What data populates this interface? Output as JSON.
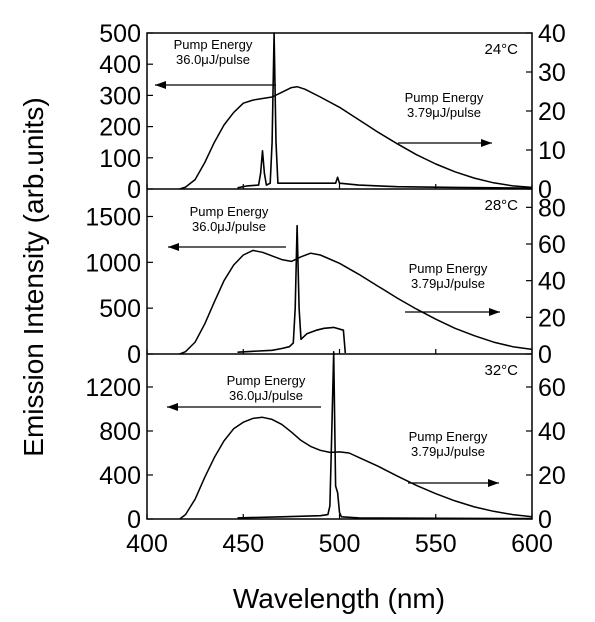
{
  "chart_data": {
    "type": "line",
    "xlabel": "Wavelength (nm)",
    "ylabel": "Emission Intensity (arb.units)",
    "xlim": [
      400,
      600
    ],
    "x_ticks": [
      400,
      450,
      500,
      550,
      600
    ],
    "panels": [
      {
        "temperature": "24°C",
        "ylim_left": [
          0,
          500
        ],
        "left_ticks": [
          0,
          100,
          200,
          300,
          400,
          500
        ],
        "ylim_right": [
          0,
          40
        ],
        "right_ticks": [
          0,
          10,
          20,
          30,
          40
        ],
        "annotations": [
          {
            "line1": "Pump Energy",
            "line2": "36.0μJ/pulse",
            "arrow": "left"
          },
          {
            "line1": "Pump Energy",
            "line2": "3.79μJ/pulse",
            "arrow": "right"
          }
        ],
        "series": [
          {
            "axis": "left",
            "points": [
              [
                417,
                0
              ],
              [
                420,
                6
              ],
              [
                425,
                30
              ],
              [
                430,
                85
              ],
              [
                435,
                150
              ],
              [
                440,
                205
              ],
              [
                445,
                245
              ],
              [
                450,
                275
              ],
              [
                455,
                285
              ],
              [
                460,
                290
              ],
              [
                465,
                295
              ],
              [
                470,
                310
              ],
              [
                475,
                325
              ],
              [
                478,
                328
              ],
              [
                482,
                320
              ],
              [
                490,
                295
              ],
              [
                500,
                262
              ],
              [
                510,
                222
              ],
              [
                520,
                182
              ],
              [
                530,
                145
              ],
              [
                540,
                110
              ],
              [
                550,
                80
              ],
              [
                560,
                55
              ],
              [
                570,
                35
              ],
              [
                580,
                20
              ],
              [
                590,
                10
              ],
              [
                600,
                5
              ]
            ]
          },
          {
            "axis": "right",
            "points": [
              [
                447,
                0.3
              ],
              [
                452,
                0.8
              ],
              [
                458,
                1
              ],
              [
                459,
                4
              ],
              [
                460,
                9.8
              ],
              [
                461,
                4
              ],
              [
                462,
                1
              ],
              [
                464,
                1.5
              ],
              [
                465,
                12
              ],
              [
                466,
                40
              ],
              [
                467,
                12
              ],
              [
                468,
                1.5
              ],
              [
                480,
                1.5
              ],
              [
                490,
                1.5
              ],
              [
                498,
                1.5
              ],
              [
                499,
                3
              ],
              [
                500,
                1.5
              ],
              [
                510,
                1
              ],
              [
                530,
                0.6
              ],
              [
                560,
                0.4
              ],
              [
                600,
                0.2
              ]
            ]
          }
        ]
      },
      {
        "temperature": "28°C",
        "ylim_left": [
          0,
          1800
        ],
        "left_ticks": [
          0,
          500,
          1000,
          1500
        ],
        "ylim_right": [
          0,
          90
        ],
        "right_ticks": [
          0,
          20,
          40,
          60,
          80
        ],
        "annotations": [
          {
            "line1": "Pump Energy",
            "line2": "36.0μJ/pulse",
            "arrow": "left"
          },
          {
            "line1": "Pump Energy",
            "line2": "3.79μJ/pulse",
            "arrow": "right"
          }
        ],
        "series": [
          {
            "axis": "left",
            "points": [
              [
                417,
                0
              ],
              [
                420,
                25
              ],
              [
                425,
                130
              ],
              [
                430,
                330
              ],
              [
                435,
                570
              ],
              [
                440,
                800
              ],
              [
                445,
                970
              ],
              [
                450,
                1080
              ],
              [
                455,
                1130
              ],
              [
                460,
                1110
              ],
              [
                465,
                1070
              ],
              [
                470,
                1030
              ],
              [
                475,
                1010
              ],
              [
                480,
                1060
              ],
              [
                485,
                1100
              ],
              [
                490,
                1080
              ],
              [
                500,
                990
              ],
              [
                510,
                870
              ],
              [
                520,
                740
              ],
              [
                530,
                610
              ],
              [
                540,
                490
              ],
              [
                550,
                380
              ],
              [
                560,
                280
              ],
              [
                570,
                200
              ],
              [
                580,
                130
              ],
              [
                590,
                80
              ],
              [
                600,
                50
              ]
            ]
          },
          {
            "axis": "right",
            "points": [
              [
                447,
                1
              ],
              [
                455,
                1.5
              ],
              [
                465,
                2
              ],
              [
                470,
                3
              ],
              [
                474,
                4
              ],
              [
                476,
                6
              ],
              [
                477,
                25
              ],
              [
                478,
                70
              ],
              [
                479,
                25
              ],
              [
                480,
                8
              ],
              [
                483,
                11
              ],
              [
                488,
                13
              ],
              [
                492,
                14
              ],
              [
                497,
                14.5
              ],
              [
                502,
                13
              ],
              [
                503,
                0.5
              ]
            ]
          }
        ]
      },
      {
        "temperature": "32°C",
        "ylim_left": [
          0,
          1500
        ],
        "left_ticks": [
          0,
          400,
          800,
          1200
        ],
        "ylim_right": [
          0,
          75
        ],
        "right_ticks": [
          0,
          20,
          40,
          60
        ],
        "annotations": [
          {
            "line1": "Pump Energy",
            "line2": "36.0μJ/pulse",
            "arrow": "left"
          },
          {
            "line1": "Pump Energy",
            "line2": "3.79μJ/pulse",
            "arrow": "right"
          }
        ],
        "series": [
          {
            "axis": "left",
            "points": [
              [
                417,
                0
              ],
              [
                420,
                40
              ],
              [
                425,
                180
              ],
              [
                430,
                380
              ],
              [
                435,
                560
              ],
              [
                440,
                710
              ],
              [
                445,
                820
              ],
              [
                450,
                880
              ],
              [
                455,
                915
              ],
              [
                460,
                925
              ],
              [
                465,
                905
              ],
              [
                470,
                860
              ],
              [
                475,
                790
              ],
              [
                480,
                715
              ],
              [
                485,
                660
              ],
              [
                490,
                625
              ],
              [
                495,
                605
              ],
              [
                500,
                610
              ],
              [
                505,
                600
              ],
              [
                510,
                560
              ],
              [
                520,
                480
              ],
              [
                530,
                390
              ],
              [
                540,
                305
              ],
              [
                550,
                230
              ],
              [
                560,
                165
              ],
              [
                570,
                110
              ],
              [
                580,
                70
              ],
              [
                590,
                40
              ],
              [
                600,
                20
              ]
            ]
          },
          {
            "axis": "right",
            "points": [
              [
                447,
                0.5
              ],
              [
                470,
                1
              ],
              [
                490,
                1.5
              ],
              [
                494,
                2
              ],
              [
                495,
                6
              ],
              [
                496,
                40
              ],
              [
                497,
                76
              ],
              [
                498,
                15
              ],
              [
                499,
                12
              ],
              [
                500,
                3
              ],
              [
                501,
                1
              ],
              [
                510,
                0.5
              ],
              [
                600,
                0.2
              ]
            ]
          }
        ]
      }
    ]
  }
}
